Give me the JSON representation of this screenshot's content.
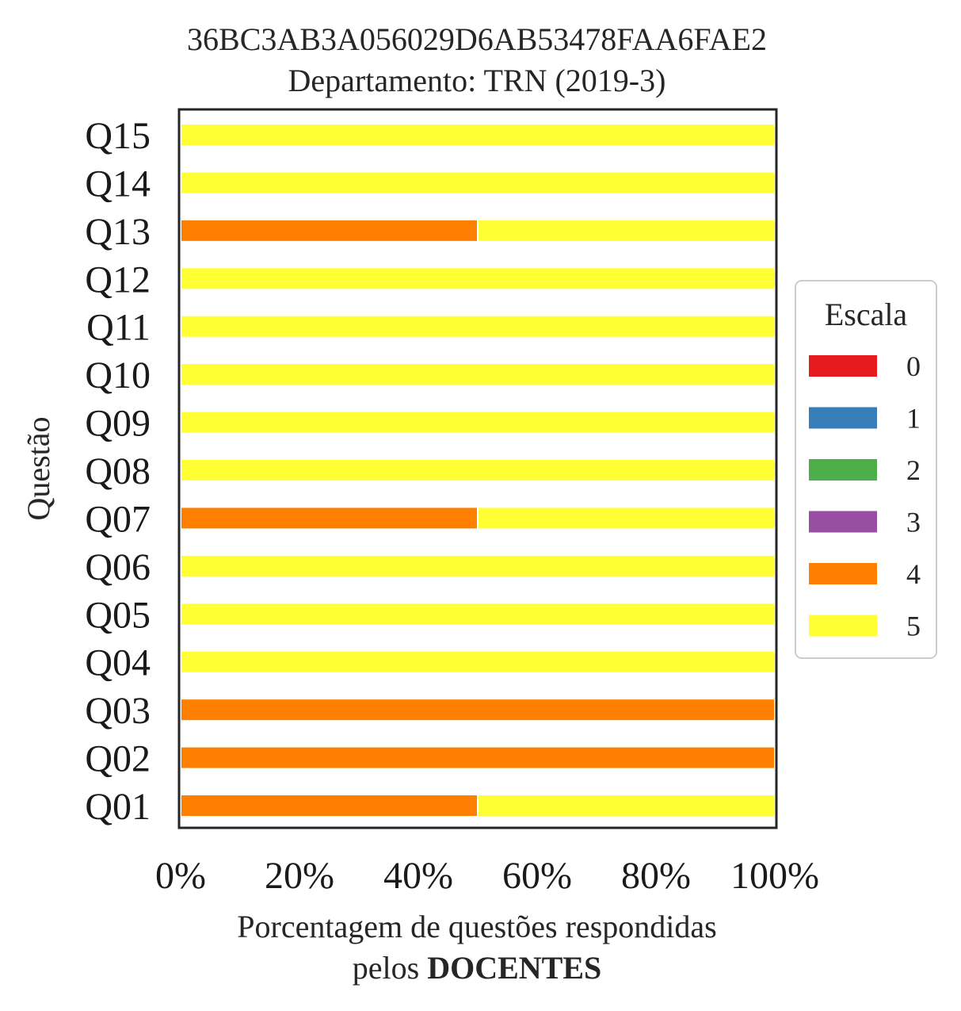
{
  "chart_data": {
    "type": "bar",
    "orientation": "horizontal",
    "stacked": true,
    "title_line1": "36BC3AB3A056029D6AB53478FAA6FAE2",
    "title_line2": "Departamento: TRN (2019-3)",
    "ylabel": "Questão",
    "xlabel_line1": "Porcentagem de questões respondidas",
    "xlabel_line2_prefix": "pelos ",
    "xlabel_line2_bold": "DOCENTES",
    "xlim": [
      0,
      100
    ],
    "xticks": [
      "0%",
      "20%",
      "40%",
      "60%",
      "80%",
      "100%"
    ],
    "xtick_values": [
      0,
      20,
      40,
      60,
      80,
      100
    ],
    "categories": [
      "Q01",
      "Q02",
      "Q03",
      "Q04",
      "Q05",
      "Q06",
      "Q07",
      "Q08",
      "Q09",
      "Q10",
      "Q11",
      "Q12",
      "Q13",
      "Q14",
      "Q15"
    ],
    "series": [
      {
        "name": "0",
        "color": "#e41a1c",
        "values": [
          0,
          0,
          0,
          0,
          0,
          0,
          0,
          0,
          0,
          0,
          0,
          0,
          0,
          0,
          0
        ]
      },
      {
        "name": "1",
        "color": "#377eb8",
        "values": [
          0,
          0,
          0,
          0,
          0,
          0,
          0,
          0,
          0,
          0,
          0,
          0,
          0,
          0,
          0
        ]
      },
      {
        "name": "2",
        "color": "#4daf4a",
        "values": [
          0,
          0,
          0,
          0,
          0,
          0,
          0,
          0,
          0,
          0,
          0,
          0,
          0,
          0,
          0
        ]
      },
      {
        "name": "3",
        "color": "#984ea3",
        "values": [
          0,
          0,
          0,
          0,
          0,
          0,
          0,
          0,
          0,
          0,
          0,
          0,
          0,
          0,
          0
        ]
      },
      {
        "name": "4",
        "color": "#ff7f00",
        "values": [
          50,
          100,
          100,
          0,
          0,
          0,
          50,
          0,
          0,
          0,
          0,
          0,
          50,
          0,
          0
        ]
      },
      {
        "name": "5",
        "color": "#ffff33",
        "values": [
          50,
          0,
          0,
          100,
          100,
          100,
          50,
          100,
          100,
          100,
          100,
          100,
          50,
          100,
          100
        ]
      }
    ],
    "legend": {
      "title": "Escala",
      "placement": "right"
    },
    "grid": false
  }
}
